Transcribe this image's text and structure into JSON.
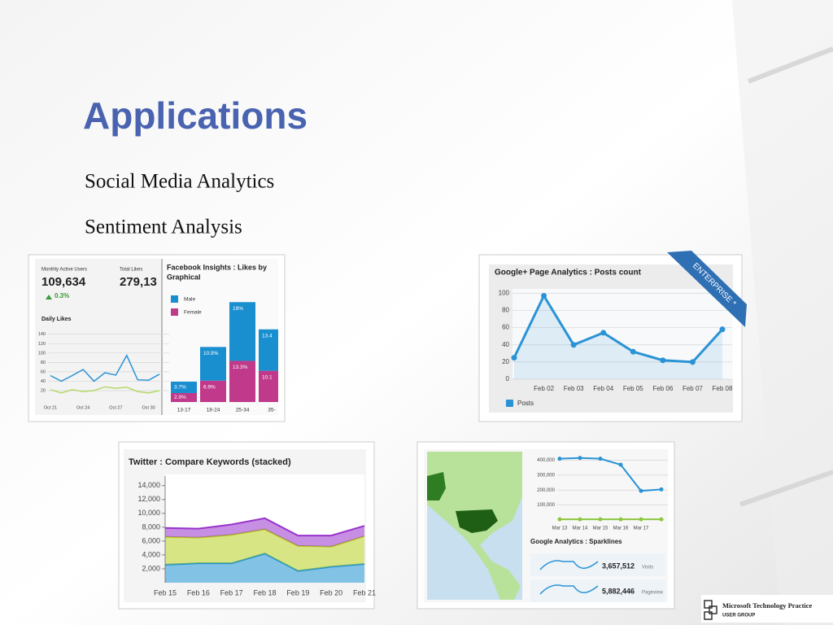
{
  "title": "Applications",
  "bullets": [
    "Social Media Analytics",
    "Sentiment Analysis"
  ],
  "chart_data": [
    {
      "type": "line",
      "kpis": [
        {
          "label": "Monthly Active Users",
          "value": "109,634",
          "change": "0.3%"
        },
        {
          "label": "Total Likes",
          "value": "279,13"
        }
      ],
      "title": "Daily Likes",
      "categories": [
        "Oct 21",
        null,
        null,
        "Oct 24",
        null,
        null,
        "Oct 27",
        null,
        null,
        "Oct 30",
        null
      ],
      "series": [
        {
          "color": "#2a93d5",
          "values": [
            52,
            40,
            52,
            65,
            40,
            58,
            53,
            95,
            43,
            42,
            55
          ]
        },
        {
          "color": "#b5d96a",
          "values": [
            22,
            15,
            22,
            18,
            20,
            28,
            25,
            27,
            18,
            15,
            20
          ]
        }
      ],
      "ylim": [
        0,
        150
      ],
      "yticks": [
        20,
        40,
        60,
        80,
        100,
        120,
        140
      ],
      "grid": true
    },
    {
      "type": "bar",
      "stacked": true,
      "title": "Facebook Insights : Likes by",
      "subtitle": "Graphical",
      "categories": [
        "13-17",
        "18-24",
        "25-34",
        "35-"
      ],
      "series": [
        {
          "name": "Male",
          "color": "#1a8fd0",
          "values": [
            3.7,
            10.9,
            19,
            13.4
          ],
          "value_labels": [
            "3.7%",
            "10.9%",
            "19%",
            "13.4"
          ]
        },
        {
          "name": "Female",
          "color": "#c0398a",
          "values": [
            2.9,
            6.9,
            13.3,
            10.1
          ],
          "value_labels": [
            "2.9%",
            "6.9%",
            "13.3%",
            "10.1"
          ]
        }
      ]
    },
    {
      "type": "line",
      "title": "Google+ Page Analytics : Posts count",
      "badge": "ENTERPRISE *",
      "categories": [
        null,
        "Feb 02",
        "Feb 03",
        "Feb 04",
        "Feb 05",
        "Feb 06",
        "Feb 07",
        "Feb 08"
      ],
      "series": [
        {
          "name": "Posts",
          "color": "#2a93d5",
          "values": [
            25,
            97,
            40,
            54,
            32,
            22,
            20,
            58
          ]
        }
      ],
      "ylim": [
        0,
        105
      ],
      "yticks": [
        0,
        20,
        40,
        60,
        80,
        100
      ],
      "grid": true,
      "markers": true,
      "fill": true
    },
    {
      "type": "area",
      "stacked": true,
      "title": "Twitter : Compare Keywords (stacked)",
      "categories": [
        "Feb 15",
        "Feb 16",
        "Feb 17",
        "Feb 18",
        "Feb 19",
        "Feb 20",
        "Feb 21"
      ],
      "series": [
        {
          "color": "#1a8fd0",
          "values": [
            2600,
            2800,
            2800,
            4200,
            1700,
            2300,
            2700
          ]
        },
        {
          "color": "#b8d020",
          "values": [
            4000,
            3700,
            4100,
            3500,
            3600,
            2900,
            4000
          ]
        },
        {
          "color": "#9933cc",
          "values": [
            1300,
            1300,
            1500,
            1600,
            1500,
            1600,
            1500
          ]
        }
      ],
      "ylim": [
        0,
        14800
      ],
      "yticks": [
        {
          "value": 2000,
          "label": "2,000"
        },
        {
          "value": 4000,
          "label": "4,000"
        },
        {
          "value": 6000,
          "label": "6,000"
        },
        {
          "value": 8000,
          "label": "8,000"
        },
        {
          "value": 10000,
          "label": "10,000"
        },
        {
          "value": 12000,
          "label": "12,000"
        },
        {
          "value": 14000,
          "label": "14,000"
        }
      ],
      "grid": false
    },
    {
      "type": "line",
      "title": "Google Analytics : Sparklines",
      "categories": [
        "Mar 13",
        "Mar 14",
        "Mar 15",
        "Mar 16",
        "Mar 17",
        null
      ],
      "series": [
        {
          "color": "#2a93d5",
          "values": [
            410000,
            415000,
            410000,
            370000,
            195000,
            205000
          ]
        },
        {
          "color": "#8dc63f",
          "values": [
            5000,
            5000,
            5000,
            5000,
            5000,
            5000
          ]
        }
      ],
      "ylim": [
        0,
        430000
      ],
      "yticks": [
        {
          "value": 100000,
          "label": "100,000"
        },
        {
          "value": 200000,
          "label": "200,000"
        },
        {
          "value": 300000,
          "label": "300,000"
        },
        {
          "value": 400000,
          "label": "400,000"
        }
      ],
      "grid": true,
      "markers": true,
      "sparklines": [
        {
          "value": "3,657,512",
          "label": "Visits"
        },
        {
          "value": "5,882,446",
          "label": "Pageview"
        }
      ]
    }
  ],
  "logo": {
    "name": "Microsoft Technology Practice",
    "subtitle": "USER GROUP"
  }
}
